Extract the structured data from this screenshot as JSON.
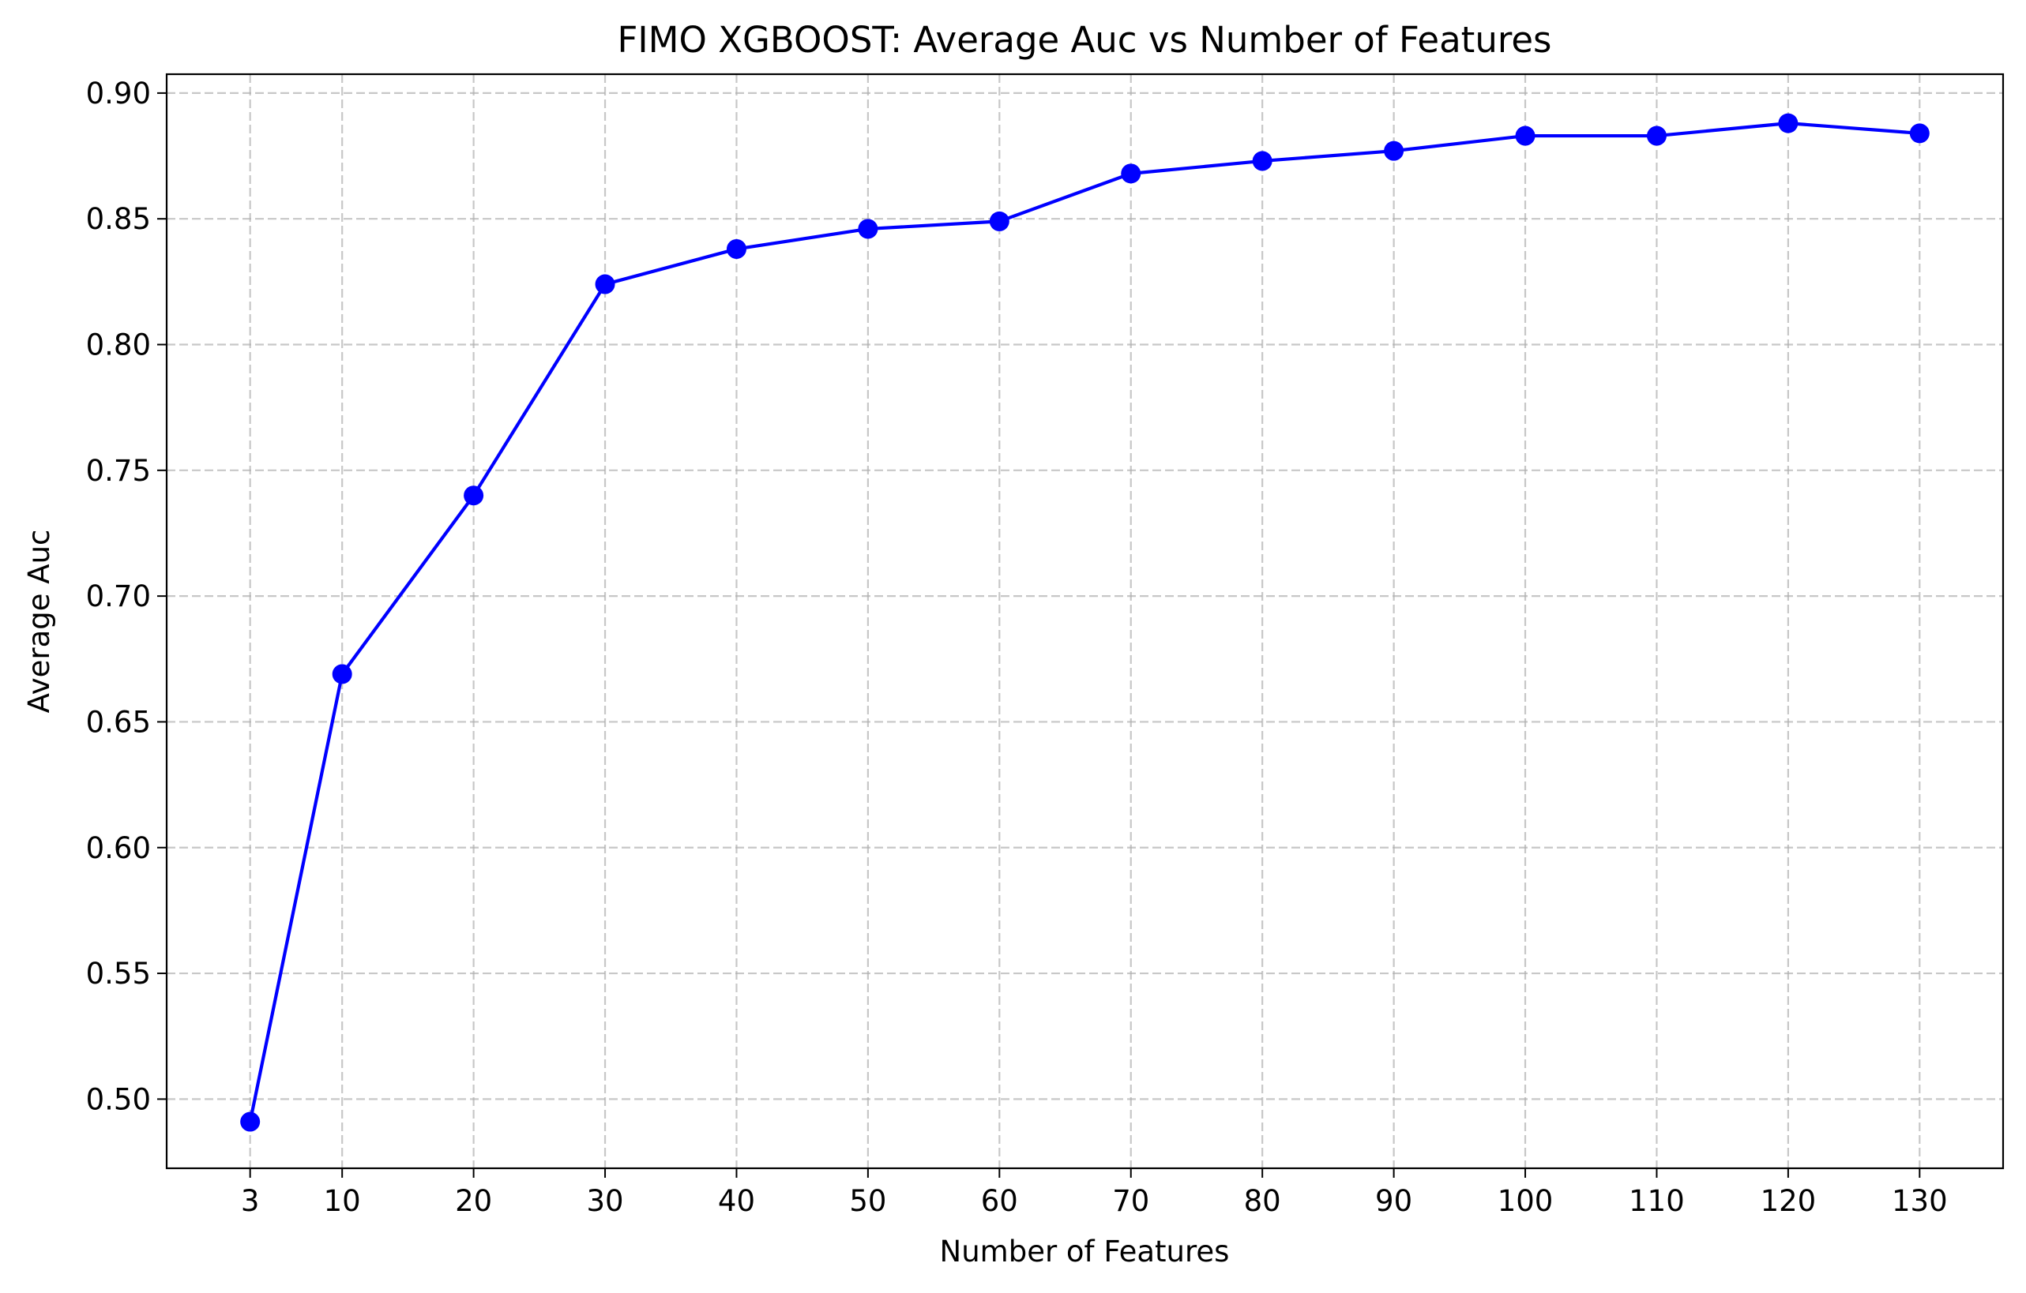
{
  "chart_data": {
    "type": "line",
    "title": "FIMO XGBOOST: Average Auc vs Number of Features",
    "xlabel": "Number of Features",
    "ylabel": "Average Auc",
    "x": [
      3,
      10,
      20,
      30,
      40,
      50,
      60,
      70,
      80,
      90,
      100,
      110,
      120,
      130
    ],
    "xticks": [
      "3",
      "10",
      "20",
      "30",
      "40",
      "50",
      "60",
      "70",
      "80",
      "90",
      "100",
      "110",
      "120",
      "130"
    ],
    "yticks": [
      "0.50",
      "0.55",
      "0.60",
      "0.65",
      "0.70",
      "0.75",
      "0.80",
      "0.85",
      "0.90"
    ],
    "ytick_values": [
      0.5,
      0.55,
      0.6,
      0.65,
      0.7,
      0.75,
      0.8,
      0.85,
      0.9
    ],
    "series": [
      {
        "values": [
          0.491,
          0.669,
          0.74,
          0.824,
          0.838,
          0.846,
          0.849,
          0.868,
          0.873,
          0.877,
          0.883,
          0.883,
          0.888,
          0.884
        ],
        "color": "#0000ff",
        "marker": "circle"
      }
    ],
    "xlim": [
      -3.35,
      136.35
    ],
    "ylim": [
      0.4725,
      0.9075
    ],
    "grid": true,
    "legend": "none"
  }
}
